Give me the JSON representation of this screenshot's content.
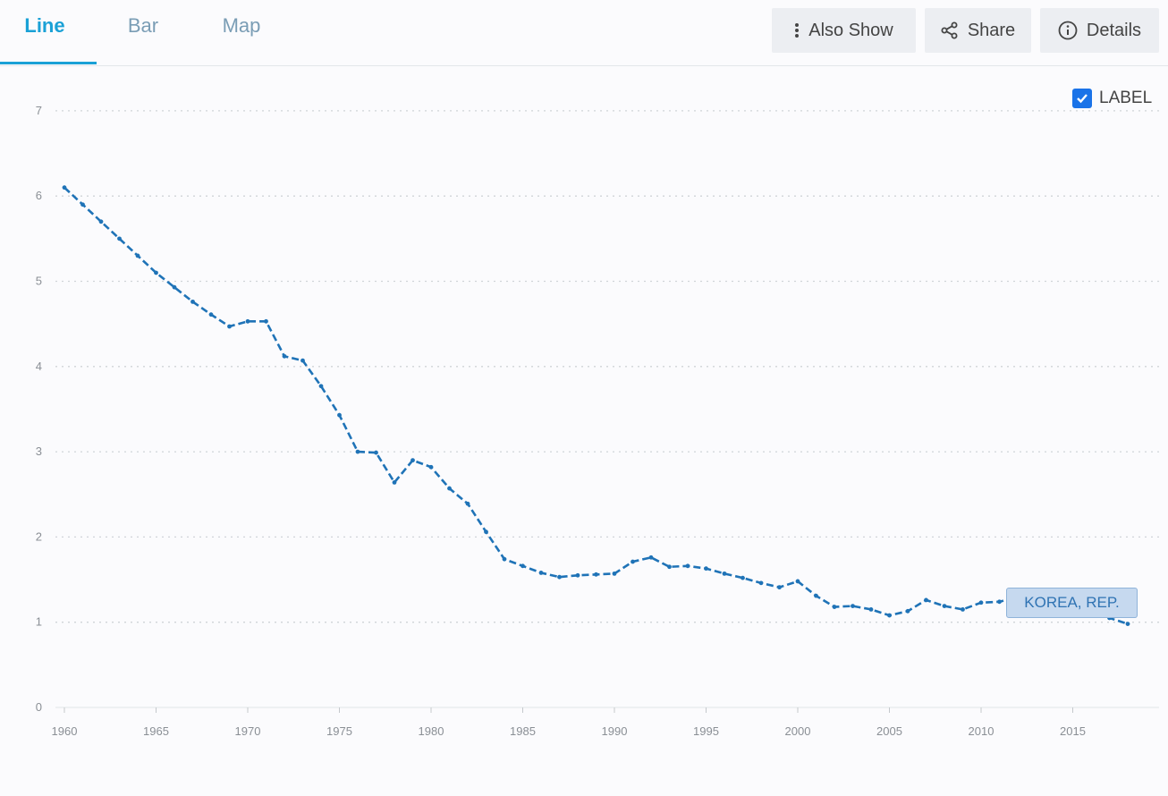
{
  "tabs": [
    {
      "label": "Line",
      "active": true
    },
    {
      "label": "Bar",
      "active": false
    },
    {
      "label": "Map",
      "active": false
    }
  ],
  "toolbar": {
    "also_show": "Also Show",
    "share": "Share",
    "details": "Details"
  },
  "label_toggle": {
    "text": "LABEL",
    "checked": true
  },
  "colors": {
    "accent": "#1aa1d6",
    "series": "#1f73b7",
    "checkbox": "#1a73e8"
  },
  "chart_data": {
    "type": "line",
    "ylim": [
      0,
      7
    ],
    "xlim": [
      1960,
      2018
    ],
    "yticks": [
      0,
      1,
      2,
      3,
      4,
      5,
      6,
      7
    ],
    "xticks": [
      1960,
      1965,
      1970,
      1975,
      1980,
      1985,
      1990,
      1995,
      2000,
      2005,
      2010,
      2015
    ],
    "grid": true,
    "series": [
      {
        "name": "KOREA, REP.",
        "x": [
          1960,
          1961,
          1962,
          1963,
          1964,
          1965,
          1966,
          1967,
          1968,
          1969,
          1970,
          1971,
          1972,
          1973,
          1974,
          1975,
          1976,
          1977,
          1978,
          1979,
          1980,
          1981,
          1982,
          1983,
          1984,
          1985,
          1986,
          1987,
          1988,
          1989,
          1990,
          1991,
          1992,
          1993,
          1994,
          1995,
          1996,
          1997,
          1998,
          1999,
          2000,
          2001,
          2002,
          2003,
          2004,
          2005,
          2006,
          2007,
          2008,
          2009,
          2010,
          2011,
          2012,
          2013,
          2014,
          2015,
          2016,
          2017,
          2018
        ],
        "y": [
          6.1,
          5.9,
          5.7,
          5.5,
          5.3,
          5.1,
          4.93,
          4.76,
          4.61,
          4.47,
          4.53,
          4.53,
          4.12,
          4.07,
          3.77,
          3.43,
          3.0,
          2.99,
          2.64,
          2.9,
          2.82,
          2.57,
          2.39,
          2.06,
          1.74,
          1.66,
          1.58,
          1.53,
          1.55,
          1.56,
          1.57,
          1.71,
          1.76,
          1.65,
          1.66,
          1.63,
          1.57,
          1.52,
          1.46,
          1.41,
          1.48,
          1.31,
          1.18,
          1.19,
          1.15,
          1.08,
          1.13,
          1.26,
          1.19,
          1.15,
          1.23,
          1.24,
          1.3,
          1.19,
          1.21,
          1.24,
          1.17,
          1.05,
          0.98
        ]
      }
    ]
  }
}
